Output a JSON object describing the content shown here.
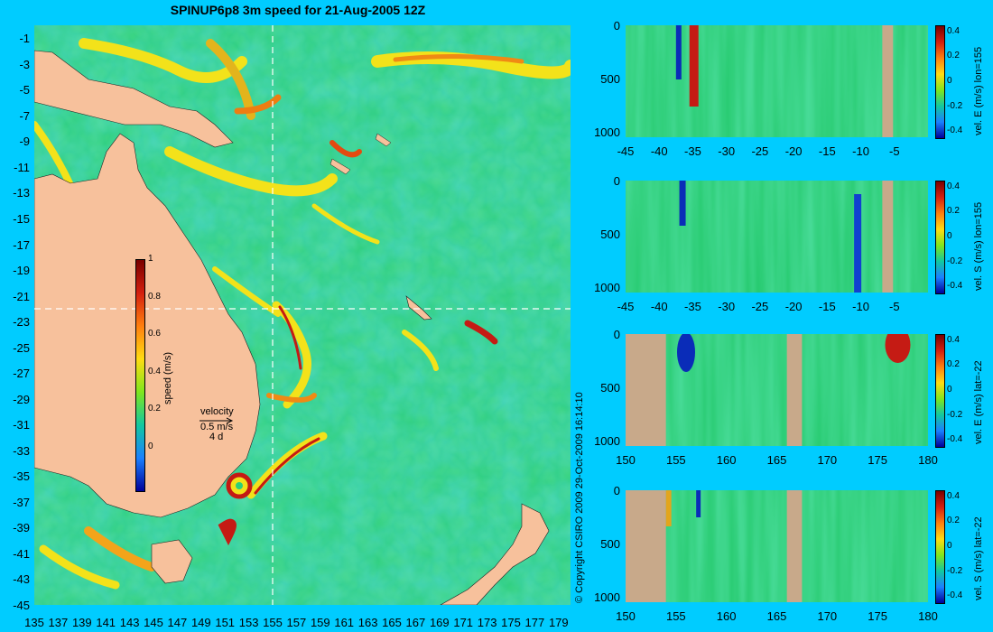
{
  "title": "SPINUP6p8 3m speed for 21-Aug-2005 12Z",
  "copyright": "© Copyright CSIRO 2009   29-Oct-2009 16:14:10",
  "colors": {
    "background": "#00ccff",
    "land": "#f7c19c",
    "land_section": "#c8a98a"
  },
  "map": {
    "x_ticks": [
      "135",
      "137",
      "139",
      "141",
      "143",
      "145",
      "147",
      "149",
      "151",
      "153",
      "155",
      "157",
      "159",
      "161",
      "163",
      "165",
      "167",
      "169",
      "171",
      "173",
      "175",
      "177",
      "179"
    ],
    "y_ticks": [
      "-1",
      "-3",
      "-5",
      "-7",
      "-9",
      "-11",
      "-13",
      "-15",
      "-17",
      "-19",
      "-21",
      "-23",
      "-25",
      "-27",
      "-29",
      "-31",
      "-33",
      "-35",
      "-37",
      "-39",
      "-41",
      "-43",
      "-45"
    ],
    "xlim": [
      135,
      180
    ],
    "ylim": [
      -45,
      0
    ],
    "section_lon": 155,
    "section_lat": -22,
    "colorbar": {
      "label": "speed (m/s)",
      "ticks": [
        "1",
        "0.8",
        "0.6",
        "0.4",
        "0.2",
        "0"
      ],
      "range": [
        0,
        1
      ]
    },
    "velocity_legend": {
      "title": "velocity",
      "scale": "0.5 m/s",
      "time": "4 d"
    }
  },
  "chart_data": [
    {
      "type": "heatmap",
      "title": "SPINUP6p8 3m speed for 21-Aug-2005 12Z",
      "xlabel": "",
      "ylabel": "",
      "xlim": [
        135,
        180
      ],
      "ylim": [
        -45,
        0
      ],
      "colorbar_label": "speed (m/s)",
      "clim": [
        0,
        1
      ]
    },
    {
      "type": "heatmap",
      "colorbar_label": "vel. E (m/s) lon=155",
      "x_ticks": [
        "-45",
        "-40",
        "-35",
        "-30",
        "-25",
        "-20",
        "-15",
        "-10",
        "-5"
      ],
      "y_ticks": [
        "0",
        "500",
        "1000"
      ],
      "xlim": [
        -45,
        0
      ],
      "ylim": [
        1050,
        0
      ],
      "cb_ticks": [
        "0.4",
        "0.2",
        "0",
        "-0.2",
        "-0.4"
      ],
      "clim": [
        -0.45,
        0.45
      ]
    },
    {
      "type": "heatmap",
      "colorbar_label": "vel. S (m/s) lon=155",
      "x_ticks": [
        "-45",
        "-40",
        "-35",
        "-30",
        "-25",
        "-20",
        "-15",
        "-10",
        "-5"
      ],
      "y_ticks": [
        "0",
        "500",
        "1000"
      ],
      "xlim": [
        -45,
        0
      ],
      "ylim": [
        1050,
        0
      ],
      "cb_ticks": [
        "0.4",
        "0.2",
        "0",
        "-0.2",
        "-0.4"
      ],
      "clim": [
        -0.45,
        0.45
      ]
    },
    {
      "type": "heatmap",
      "colorbar_label": "vel. E (m/s) lat=-22",
      "x_ticks": [
        "150",
        "155",
        "160",
        "165",
        "170",
        "175",
        "180"
      ],
      "y_ticks": [
        "0",
        "500",
        "1000"
      ],
      "xlim": [
        150,
        180
      ],
      "ylim": [
        1050,
        0
      ],
      "cb_ticks": [
        "0.4",
        "0.2",
        "0",
        "-0.2",
        "-0.4"
      ],
      "clim": [
        -0.45,
        0.45
      ]
    },
    {
      "type": "heatmap",
      "colorbar_label": "vel. S (m/s) lat=-22",
      "x_ticks": [
        "150",
        "155",
        "160",
        "165",
        "170",
        "175",
        "180"
      ],
      "y_ticks": [
        "0",
        "500",
        "1000"
      ],
      "xlim": [
        150,
        180
      ],
      "ylim": [
        1050,
        0
      ],
      "cb_ticks": [
        "0.4",
        "0.2",
        "0",
        "-0.2",
        "-0.4"
      ],
      "clim": [
        -0.45,
        0.45
      ]
    }
  ]
}
